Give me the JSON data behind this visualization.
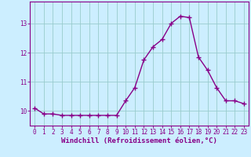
{
  "x": [
    0,
    1,
    2,
    3,
    4,
    5,
    6,
    7,
    8,
    9,
    10,
    11,
    12,
    13,
    14,
    15,
    16,
    17,
    18,
    19,
    20,
    21,
    22,
    23
  ],
  "y": [
    10.1,
    9.9,
    9.9,
    9.85,
    9.85,
    9.85,
    9.85,
    9.85,
    9.85,
    9.85,
    10.35,
    10.8,
    11.75,
    12.2,
    12.45,
    13.0,
    13.25,
    13.2,
    11.85,
    11.4,
    10.8,
    10.35,
    10.35,
    10.25
  ],
  "line_color": "#880088",
  "marker": "+",
  "marker_size": 4,
  "marker_linewidth": 1.0,
  "background_color": "#cceeff",
  "grid_color": "#99cccc",
  "xlabel": "Windchill (Refroidissement éolien,°C)",
  "ylim": [
    9.5,
    13.75
  ],
  "xlim": [
    -0.5,
    23.5
  ],
  "yticks": [
    10,
    11,
    12,
    13
  ],
  "xticks": [
    0,
    1,
    2,
    3,
    4,
    5,
    6,
    7,
    8,
    9,
    10,
    11,
    12,
    13,
    14,
    15,
    16,
    17,
    18,
    19,
    20,
    21,
    22,
    23
  ],
  "tick_color": "#880088",
  "label_color": "#880088",
  "spine_color": "#880088",
  "font_size_xlabel": 6.5,
  "font_size_tick": 5.5,
  "linewidth": 1.0
}
